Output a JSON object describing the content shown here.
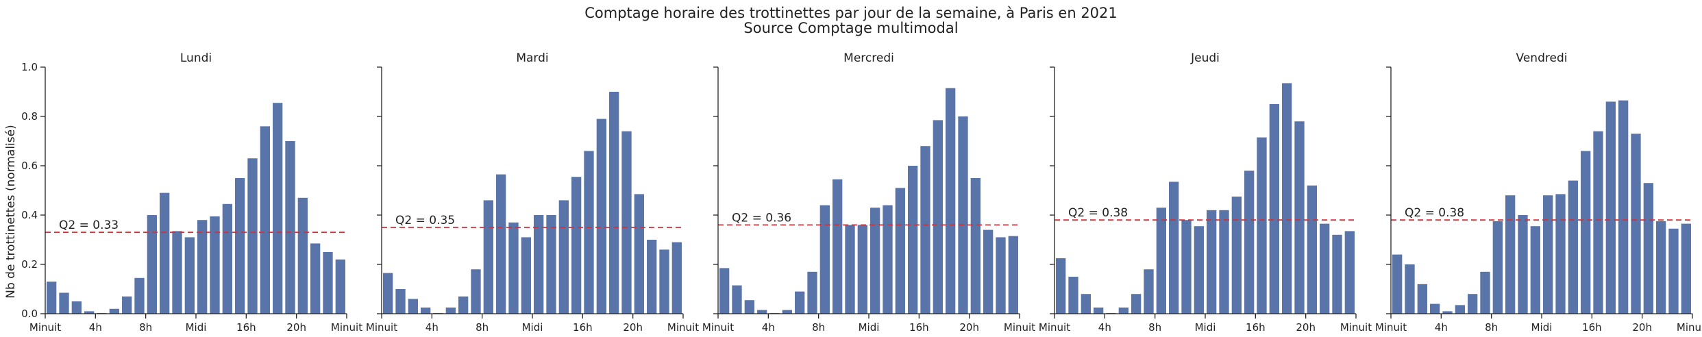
{
  "title": "Comptage horaire des trottinettes par jour de la semaine, à Paris en 2021",
  "subtitle": "Source Comptage multimodal",
  "chart_data": {
    "type": "bar",
    "ylabel": "Nb de trottinettes (normalisé)",
    "ylim": [
      0,
      1.0
    ],
    "yticks": [
      "0.0",
      "0.2",
      "0.4",
      "0.6",
      "0.8",
      "1.0"
    ],
    "xlim": [
      0,
      24
    ],
    "xticks": [
      {
        "value": 0,
        "label": "Minuit"
      },
      {
        "value": 4,
        "label": "4h"
      },
      {
        "value": 8,
        "label": "8h"
      },
      {
        "value": 12,
        "label": "Midi"
      },
      {
        "value": 16,
        "label": "16h"
      },
      {
        "value": 20,
        "label": "20h"
      },
      {
        "value": 24,
        "label": "Minuit"
      }
    ],
    "hours": [
      0,
      1,
      2,
      3,
      4,
      5,
      6,
      7,
      8,
      9,
      10,
      11,
      12,
      13,
      14,
      15,
      16,
      17,
      18,
      19,
      20,
      21,
      22,
      23
    ],
    "bar_color": "#5874a8",
    "line_color": "#d0323c",
    "panels": [
      {
        "day": "Lundi",
        "q2": 0.33,
        "q2_label": "Q2 = 0.33",
        "values": [
          0.13,
          0.085,
          0.05,
          0.01,
          0.003,
          0.02,
          0.07,
          0.145,
          0.4,
          0.49,
          0.335,
          0.31,
          0.38,
          0.395,
          0.445,
          0.55,
          0.63,
          0.76,
          0.855,
          0.7,
          0.47,
          0.285,
          0.25,
          0.22
        ]
      },
      {
        "day": "Mardi",
        "q2": 0.35,
        "q2_label": "Q2 = 0.35",
        "values": [
          0.165,
          0.1,
          0.06,
          0.025,
          0.003,
          0.025,
          0.07,
          0.18,
          0.46,
          0.565,
          0.37,
          0.31,
          0.4,
          0.4,
          0.46,
          0.555,
          0.66,
          0.79,
          0.9,
          0.74,
          0.485,
          0.3,
          0.26,
          0.29
        ]
      },
      {
        "day": "Mercredi",
        "q2": 0.36,
        "q2_label": "Q2 = 0.36",
        "values": [
          0.185,
          0.115,
          0.055,
          0.015,
          0.003,
          0.015,
          0.09,
          0.17,
          0.44,
          0.545,
          0.36,
          0.36,
          0.43,
          0.44,
          0.51,
          0.6,
          0.68,
          0.785,
          0.915,
          0.8,
          0.55,
          0.34,
          0.31,
          0.315
        ]
      },
      {
        "day": "Jeudi",
        "q2": 0.38,
        "q2_label": "Q2 = 0.38",
        "values": [
          0.225,
          0.15,
          0.08,
          0.025,
          0.003,
          0.025,
          0.08,
          0.18,
          0.43,
          0.535,
          0.38,
          0.355,
          0.42,
          0.42,
          0.475,
          0.58,
          0.715,
          0.85,
          0.935,
          0.78,
          0.52,
          0.365,
          0.32,
          0.335
        ]
      },
      {
        "day": "Vendredi",
        "q2": 0.38,
        "q2_label": "Q2 = 0.38",
        "values": [
          0.24,
          0.2,
          0.12,
          0.04,
          0.01,
          0.035,
          0.08,
          0.17,
          0.375,
          0.48,
          0.4,
          0.355,
          0.48,
          0.485,
          0.54,
          0.66,
          0.74,
          0.86,
          0.865,
          0.73,
          0.53,
          0.375,
          0.345,
          0.365
        ]
      }
    ]
  }
}
